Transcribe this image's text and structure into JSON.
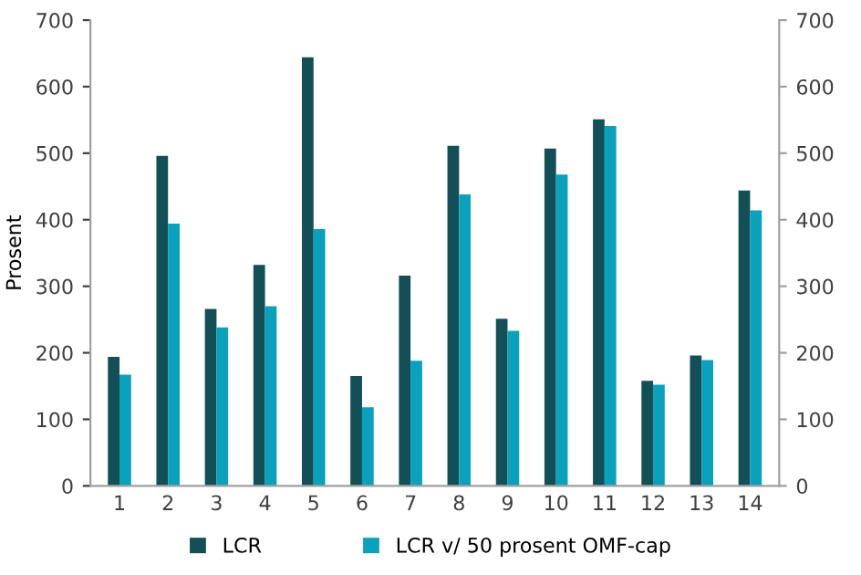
{
  "chart_data": {
    "type": "bar",
    "ylabel": "Prosent",
    "categories": [
      "1",
      "2",
      "3",
      "4",
      "5",
      "6",
      "7",
      "8",
      "9",
      "10",
      "11",
      "12",
      "13",
      "14"
    ],
    "series": [
      {
        "name": "LCR",
        "color": "#134f57",
        "values": [
          194,
          496,
          266,
          332,
          644,
          165,
          316,
          511,
          251,
          507,
          551,
          158,
          196,
          444
        ]
      },
      {
        "name": "LCR v/ 50 prosent OMF-cap",
        "color": "#0aa1bc",
        "values": [
          167,
          394,
          238,
          270,
          386,
          118,
          188,
          438,
          233,
          468,
          541,
          152,
          189,
          414
        ]
      }
    ],
    "ylim": [
      0,
      700
    ],
    "yticks": [
      0,
      100,
      200,
      300,
      400,
      500,
      600,
      700
    ],
    "y2lim": [
      0,
      700
    ],
    "y2ticks": [
      0,
      100,
      200,
      300,
      400,
      500,
      600,
      700
    ],
    "grid": false,
    "legend": "bottom"
  }
}
